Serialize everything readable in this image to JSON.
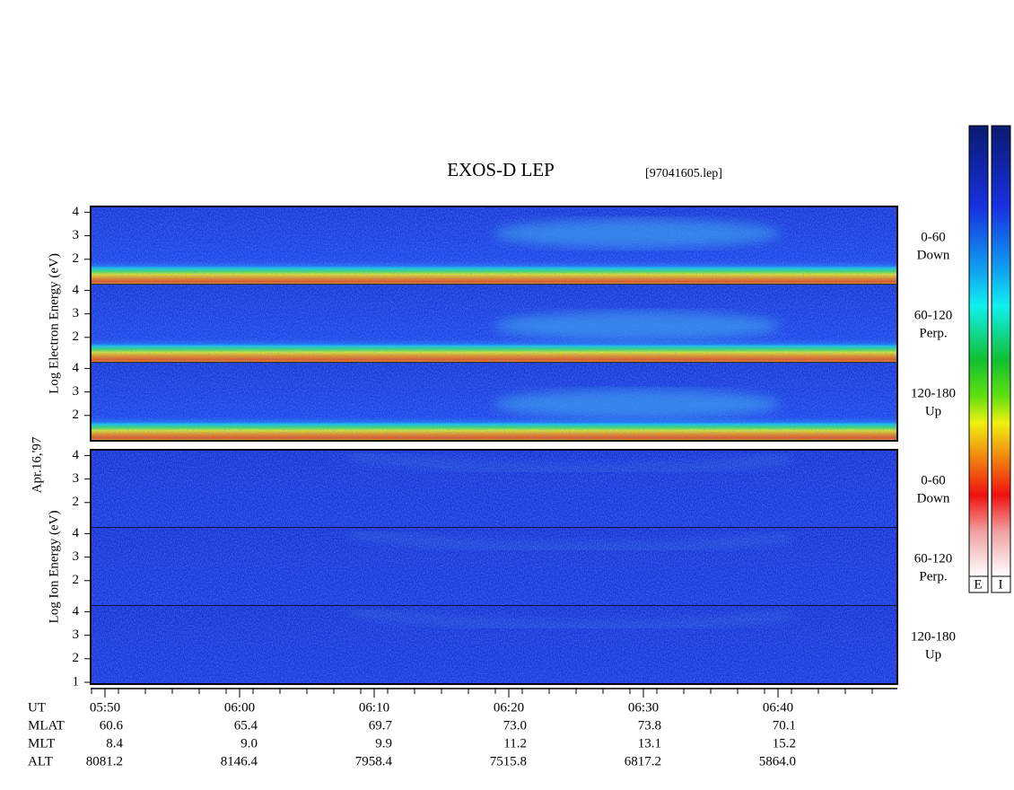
{
  "title": "EXOS-D LEP",
  "file": "[97041605.lep]",
  "date": "Apr.16,'97",
  "electron": {
    "ylabel": "Log  Electron  Energy (eV)",
    "panels": [
      {
        "label": "0-60",
        "sub": "Down",
        "yticks": [
          4,
          3,
          2
        ]
      },
      {
        "label": "60-120",
        "sub": "Perp.",
        "yticks": [
          4,
          3,
          2
        ]
      },
      {
        "label": "120-180",
        "sub": "Up",
        "yticks": [
          4,
          3,
          2
        ]
      }
    ]
  },
  "ion": {
    "ylabel": "Log  Ion  Energy (eV)",
    "panels": [
      {
        "label": "0-60",
        "sub": "Down",
        "yticks": [
          4,
          3,
          2
        ]
      },
      {
        "label": "60-120",
        "sub": "Perp.",
        "yticks": [
          4,
          3,
          2
        ]
      },
      {
        "label": "120-180",
        "sub": "Up",
        "yticks": [
          4,
          3,
          2,
          1
        ]
      }
    ]
  },
  "ephemeris": [
    {
      "name": "UT",
      "values": [
        "05:50",
        "06:00",
        "06:10",
        "06:20",
        "06:30",
        "06:40"
      ]
    },
    {
      "name": "MLAT",
      "values": [
        "60.6",
        "65.4",
        "69.7",
        "73.0",
        "73.8",
        "70.1"
      ]
    },
    {
      "name": "MLT",
      "values": [
        "8.4",
        "9.0",
        "9.9",
        "11.2",
        "13.1",
        "15.2"
      ]
    },
    {
      "name": "ALT",
      "values": [
        "8081.2",
        "8146.4",
        "7958.4",
        "7515.8",
        "6817.2",
        "5864.0"
      ]
    }
  ],
  "colorbar": {
    "labels": [
      "E",
      "I"
    ]
  }
}
